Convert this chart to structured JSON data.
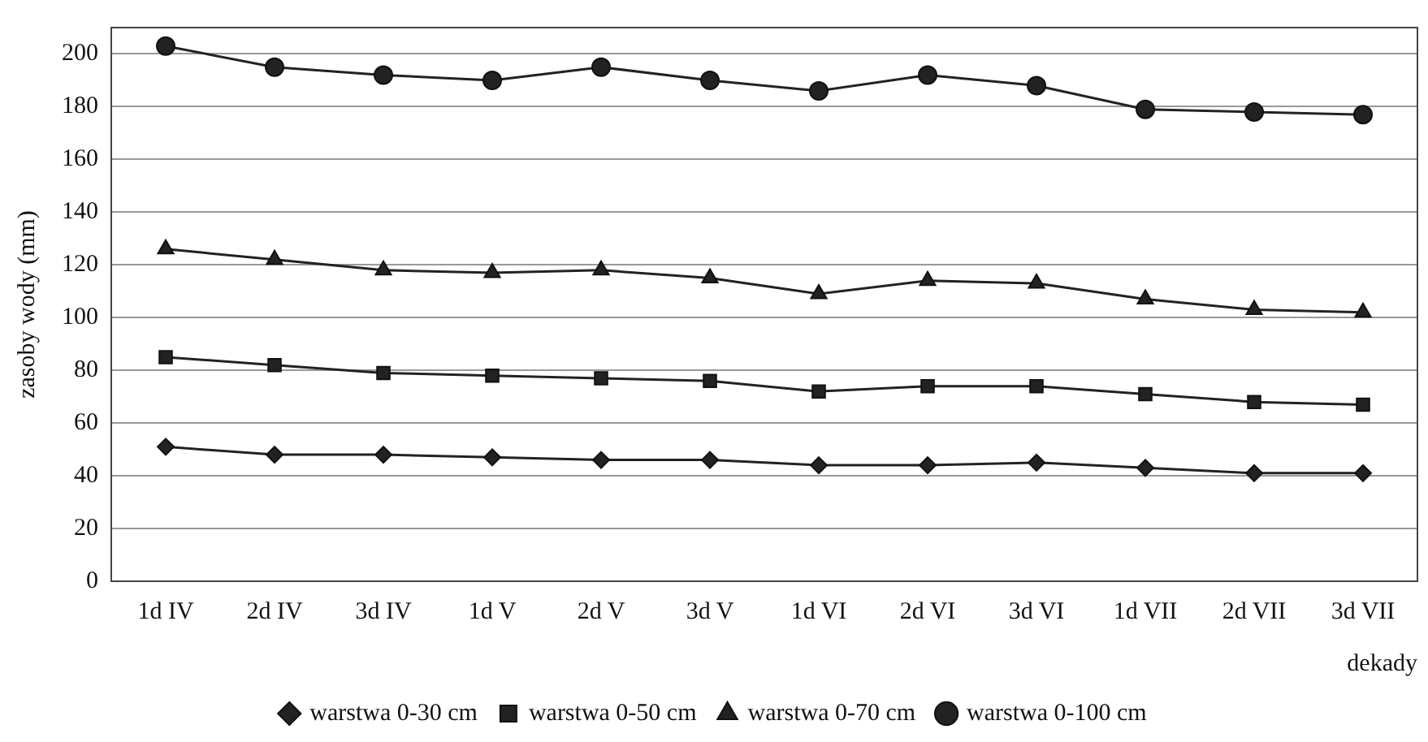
{
  "chart_data": {
    "type": "line",
    "xlabel": "dekady",
    "ylabel": "zasoby wody (mm)",
    "categories": [
      "1d IV",
      "2d IV",
      "3d IV",
      "1d V",
      "2d V",
      "3d V",
      "1d VI",
      "2d VI",
      "3d VI",
      "1d VII",
      "2d VII",
      "3d VII"
    ],
    "series": [
      {
        "name": "warstwa 0-30 cm",
        "color": "#222222",
        "marker": "diamond",
        "values": [
          51,
          48,
          48,
          47,
          46,
          46,
          44,
          44,
          45,
          43,
          41,
          41
        ]
      },
      {
        "name": "warstwa 0-50 cm",
        "color": "#222222",
        "marker": "square",
        "values": [
          85,
          82,
          79,
          78,
          77,
          76,
          72,
          74,
          74,
          71,
          68,
          67
        ]
      },
      {
        "name": "warstwa 0-70 cm",
        "color": "#222222",
        "marker": "triangle",
        "values": [
          126,
          122,
          118,
          117,
          118,
          115,
          109,
          114,
          113,
          107,
          103,
          102
        ]
      },
      {
        "name": "warstwa 0-100 cm",
        "color": "#222222",
        "marker": "circle",
        "values": [
          203,
          195,
          192,
          190,
          195,
          190,
          186,
          192,
          188,
          179,
          178,
          177
        ]
      }
    ],
    "ylim": [
      0,
      210
    ],
    "yticks": [
      0,
      20,
      40,
      60,
      80,
      100,
      120,
      140,
      160,
      180,
      200
    ],
    "grid": "y",
    "legend": "bottom",
    "line_style": "solid"
  }
}
